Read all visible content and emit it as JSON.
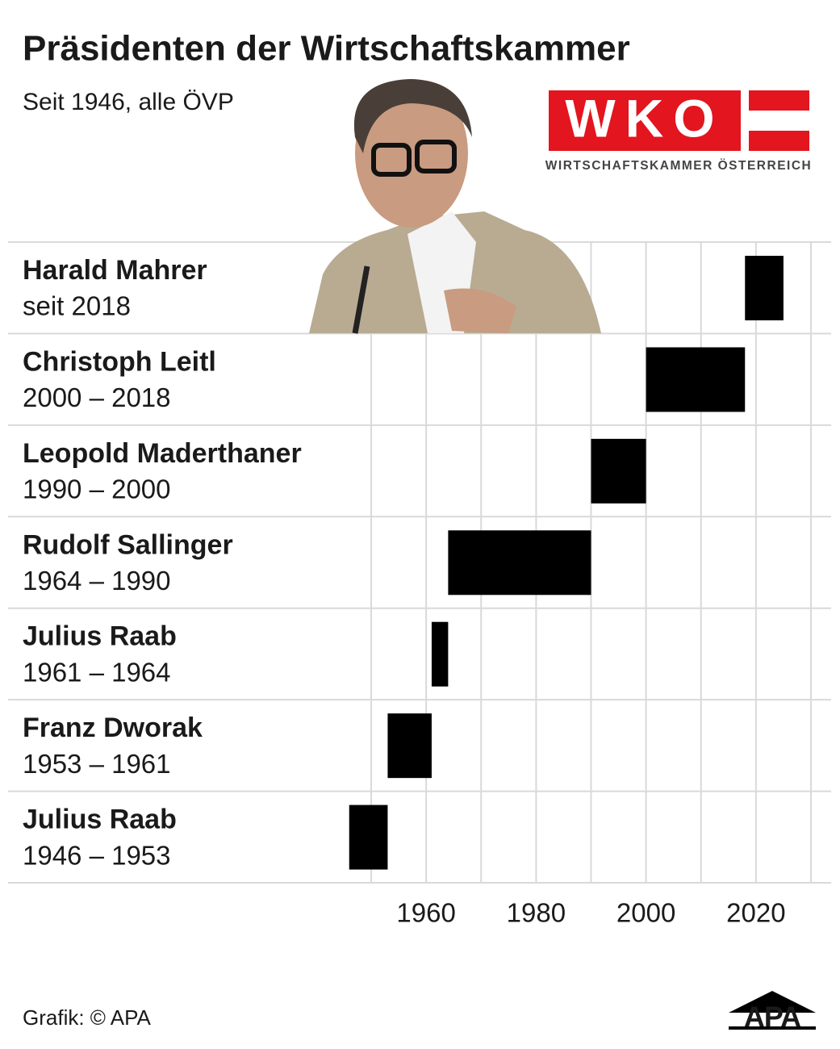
{
  "chart_data": {
    "type": "timeline",
    "title": "Präsidenten der Wirtschaftskammer",
    "subtitle": "Seit 1946, alle ÖVP",
    "logo": {
      "mark": "WKO",
      "caption": "WIRTSCHAFTSKAMMER ÖSTERREICH"
    },
    "source": "Grafik: © APA",
    "brand": "APA",
    "color": "#000000",
    "grid": true,
    "xlim": [
      1950,
      2030
    ],
    "xticks": [
      1960,
      1980,
      2000,
      2020
    ],
    "xminor": [
      1950,
      1970,
      1990,
      2010,
      2030
    ],
    "tasks": [
      {
        "name": "Harald Mahrer",
        "period": "seit 2018",
        "start": 2018,
        "end": 2025
      },
      {
        "name": "Christoph Leitl",
        "period": "2000 – 2018",
        "start": 2000,
        "end": 2018
      },
      {
        "name": "Leopold Maderthaner",
        "period": "1990 – 2000",
        "start": 1990,
        "end": 2000
      },
      {
        "name": "Rudolf Sallinger",
        "period": "1964 – 1990",
        "start": 1964,
        "end": 1990
      },
      {
        "name": "Julius Raab",
        "period": "1961 – 1964",
        "start": 1961,
        "end": 1964
      },
      {
        "name": "Franz Dworak",
        "period": "1953 – 1961",
        "start": 1953,
        "end": 1961
      },
      {
        "name": "Julius Raab",
        "period": "1946 – 1953",
        "start": 1946,
        "end": 1953
      }
    ]
  }
}
